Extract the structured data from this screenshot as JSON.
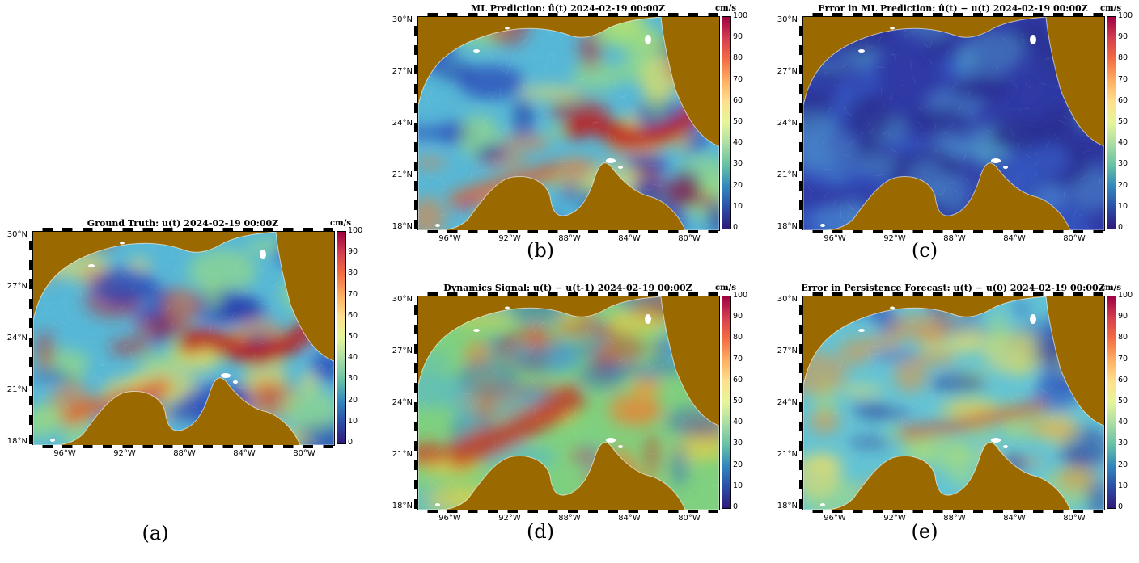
{
  "figure": {
    "panels": [
      {
        "id": "a",
        "title": "Ground Truth: u(t) 2024-02-19 00:00Z",
        "caption": "(a)",
        "style": "truth"
      },
      {
        "id": "b",
        "title": "ML Prediction: û(t) 2024-02-19 00:00Z",
        "caption": "(b)",
        "style": "truth"
      },
      {
        "id": "c",
        "title": "Error in ML Prediction: û(t) − u(t) 2024-02-19 00:00Z",
        "caption": "(c)",
        "style": "error"
      },
      {
        "id": "d",
        "title": "Dynamics Signal: u(t) − u(t-1) 2024-02-19 00:00Z",
        "caption": "(d)",
        "style": "dynamics"
      },
      {
        "id": "e",
        "title": "Error in Persistence Forecast: u(t) − u(0) 2024-02-19 00:00Z",
        "caption": "(e)",
        "style": "persistence"
      }
    ],
    "lat_labels": [
      "30°N",
      "27°N",
      "24°N",
      "21°N",
      "18°N"
    ],
    "lon_labels": [
      "96°W",
      "92°W",
      "88°W",
      "84°W",
      "80°W"
    ],
    "colorbar": {
      "unit": "cm/s",
      "ticks": [
        "100",
        "90",
        "80",
        "70",
        "60",
        "50",
        "40",
        "30",
        "20",
        "10",
        "0"
      ],
      "colormap": [
        "#9e0142",
        "#d53e4f",
        "#f46d43",
        "#fdae61",
        "#fee08b",
        "#e6f598",
        "#abdda4",
        "#66c2a5",
        "#3288bd",
        "#2b4da8",
        "#30197a"
      ]
    },
    "colors": {
      "land": "#9a6a00"
    }
  }
}
